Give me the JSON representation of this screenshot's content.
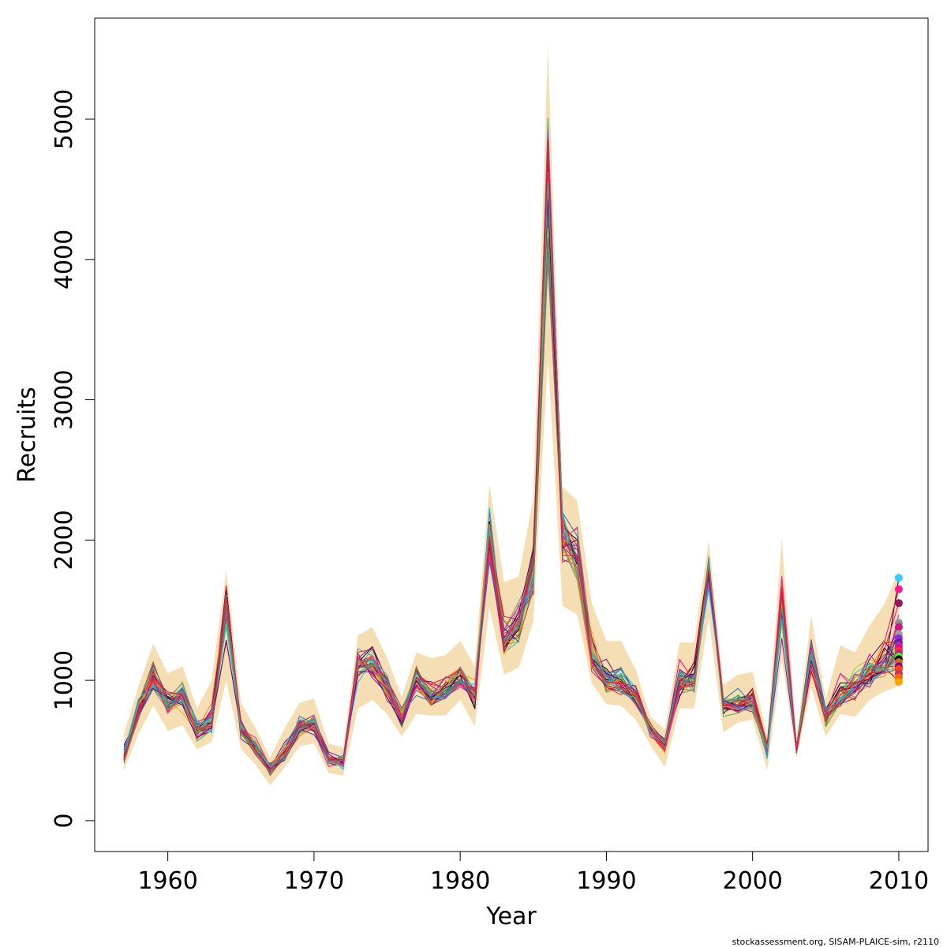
{
  "chart_data": {
    "type": "line",
    "xlabel": "Year",
    "ylabel": "Recruits",
    "xlim": [
      1955,
      2012
    ],
    "ylim": [
      -220,
      5720
    ],
    "xticks": [
      1960,
      1970,
      1980,
      1990,
      2000,
      2010
    ],
    "yticks": [
      0,
      1000,
      2000,
      3000,
      4000,
      5000
    ],
    "grid": false,
    "band_color": "#f5deb3",
    "x": [
      1957,
      1958,
      1959,
      1960,
      1961,
      1962,
      1963,
      1964,
      1965,
      1966,
      1967,
      1968,
      1969,
      1970,
      1971,
      1972,
      1973,
      1974,
      1975,
      1976,
      1977,
      1978,
      1979,
      1980,
      1981,
      1982,
      1983,
      1984,
      1985,
      1986,
      1987,
      1988,
      1989,
      1990,
      1991,
      1992,
      1993,
      1994,
      1995,
      1996,
      1997,
      1998,
      1999,
      2000,
      2001,
      2002,
      2003,
      2004,
      2005,
      2006,
      2007,
      2008,
      2009,
      2010
    ],
    "median": [
      450,
      780,
      990,
      830,
      880,
      640,
      700,
      1580,
      640,
      520,
      370,
      470,
      660,
      690,
      430,
      420,
      1120,
      1140,
      940,
      730,
      1010,
      880,
      910,
      1020,
      890,
      2020,
      1300,
      1400,
      1750,
      4600,
      2050,
      1860,
      1150,
      1010,
      990,
      880,
      650,
      530,
      980,
      1000,
      1820,
      820,
      830,
      840,
      500,
      1540,
      510,
      1150,
      760,
      860,
      960,
      1040,
      1100,
      1200
    ],
    "lower": [
      360,
      620,
      820,
      640,
      680,
      510,
      560,
      1000,
      510,
      400,
      250,
      380,
      530,
      550,
      340,
      320,
      800,
      860,
      760,
      600,
      760,
      750,
      750,
      860,
      670,
      1520,
      1040,
      1090,
      1420,
      3300,
      1530,
      1470,
      980,
      830,
      820,
      720,
      540,
      380,
      800,
      800,
      1440,
      630,
      700,
      720,
      360,
      1150,
      450,
      950,
      600,
      760,
      740,
      860,
      920,
      960
    ],
    "upper": [
      620,
      960,
      1260,
      1050,
      1100,
      800,
      1000,
      1780,
      840,
      660,
      450,
      660,
      840,
      870,
      550,
      520,
      1320,
      1380,
      1160,
      880,
      1200,
      1160,
      1180,
      1280,
      1100,
      2400,
      1700,
      1740,
      2300,
      5530,
      2380,
      2280,
      1550,
      1280,
      1280,
      1080,
      740,
      650,
      1270,
      1270,
      2000,
      970,
      1040,
      1060,
      600,
      2010,
      580,
      1460,
      870,
      1250,
      1200,
      1390,
      1540,
      1780
    ],
    "n_series": 40,
    "series_colors": [
      "#000000",
      "#e6194b",
      "#ff0080",
      "#8b0057",
      "#6a1b9a",
      "#1f77b4",
      "#17becf",
      "#2ca02c",
      "#9acd32",
      "#ffa500",
      "#ff7f0e",
      "#d62728",
      "#9467bd",
      "#00bfff",
      "#4b0082",
      "#808080",
      "#a0522d",
      "#ff1493",
      "#3cb371",
      "#dc143c"
    ],
    "endpoint_values": [
      1730,
      1650,
      1550,
      1410,
      1380,
      1330,
      1300,
      1270,
      1250,
      1230,
      1210,
      1190,
      1170,
      1150,
      1130,
      1100,
      1080,
      1050,
      1020,
      990
    ],
    "endpoint_colors": [
      "#33ccff",
      "#ff1493",
      "#9b1560",
      "#909090",
      "#c71585",
      "#a0a0a0",
      "#8a2be2",
      "#6a1b9a",
      "#9932cc",
      "#ff0080",
      "#ff3333",
      "#c71585",
      "#39ff14",
      "#000000",
      "#d2691e",
      "#8b008b",
      "#ff4500",
      "#cc3366",
      "#ff6600",
      "#ffa500"
    ]
  },
  "footer": {
    "note": "stockassessment.org, SISAM-PLAICE-sim, r2110"
  }
}
